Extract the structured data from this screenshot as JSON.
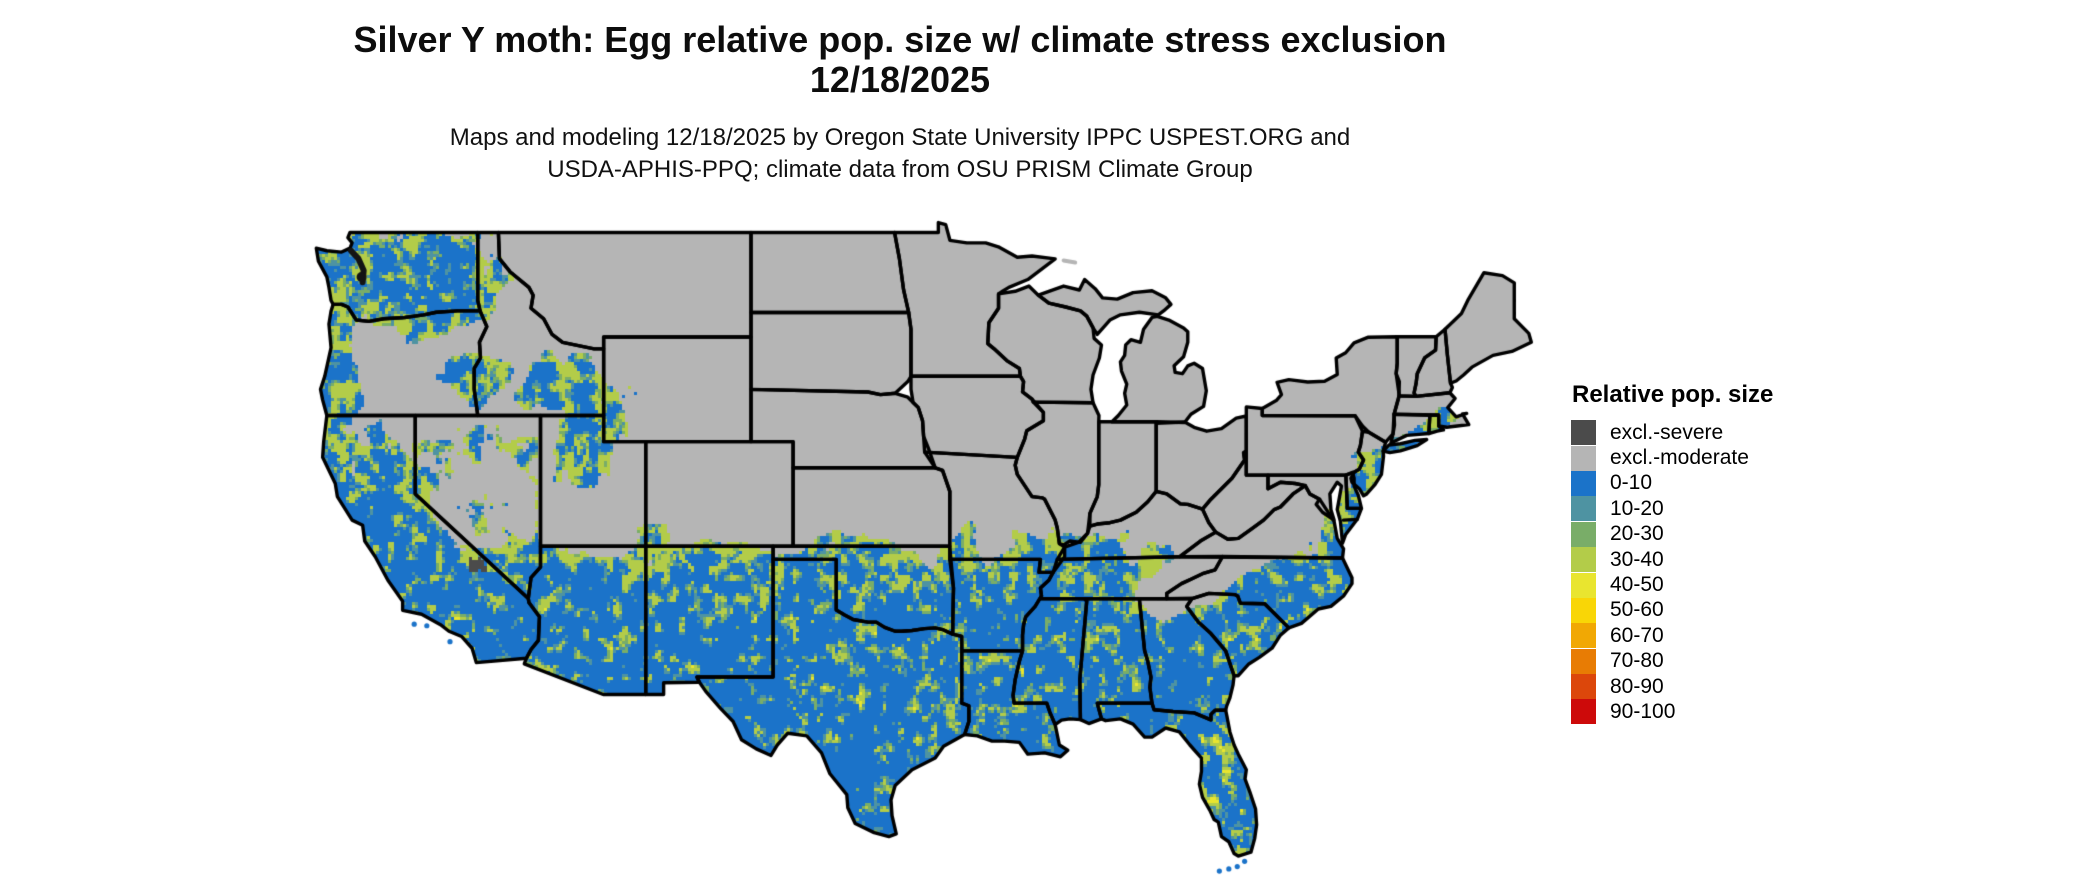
{
  "header": {
    "title_line1": "Silver Y moth: Egg relative pop. size w/ climate stress exclusion",
    "title_line2": "12/18/2025",
    "subtitle_line1": "Maps and modeling 12/18/2025 by Oregon State University IPPC USPEST.ORG and",
    "subtitle_line2": "USDA-APHIS-PPQ; climate data from OSU PRISM Climate Group"
  },
  "legend": {
    "title": "Relative pop. size",
    "entries": [
      {
        "label": "excl.-severe",
        "color": "#4B4B4B"
      },
      {
        "label": "excl.-moderate",
        "color": "#B5B5B5"
      },
      {
        "label": "0-10",
        "color": "#1B73C9"
      },
      {
        "label": "10-20",
        "color": "#4E93A2"
      },
      {
        "label": "20-30",
        "color": "#79AD68"
      },
      {
        "label": "30-40",
        "color": "#B3CC49"
      },
      {
        "label": "40-50",
        "color": "#E9E52F"
      },
      {
        "label": "50-60",
        "color": "#F9D606"
      },
      {
        "label": "60-70",
        "color": "#F1A804"
      },
      {
        "label": "70-80",
        "color": "#E87C04"
      },
      {
        "label": "80-90",
        "color": "#DC470B"
      },
      {
        "label": "90-100",
        "color": "#CD0A0A"
      }
    ]
  },
  "map": {
    "depicts": "Contiguous United States raster of modeled relative population size",
    "water_color": "#FFFFFF",
    "state_border_color": "#000000"
  }
}
